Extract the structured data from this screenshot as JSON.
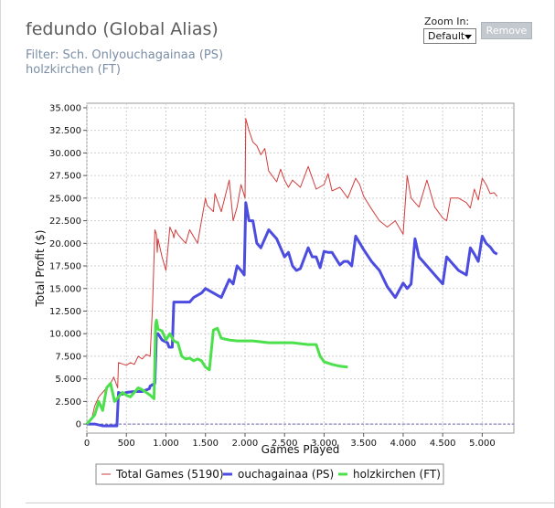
{
  "header": {
    "title": "fedundo (Global Alias)",
    "filter_line1": "Filter: Sch. Onlyouchagainaa (PS)",
    "filter_line2": "holzkirchen (FT)"
  },
  "zoom": {
    "label": "Zoom In:",
    "selected": "Default"
  },
  "remove_label": "Remove",
  "colors": {
    "total": "#d23c3c",
    "ouchagainaa": "#4c4ce0",
    "holzkirchen": "#4ce04c",
    "grid": "#cfcfcf",
    "zero_line": "#6b6bb0"
  },
  "chart_data": {
    "type": "line",
    "xlabel": "Games Played",
    "ylabel": "Total Profit ($)",
    "xlim": [
      0,
      5400
    ],
    "ylim": [
      -1000,
      35500
    ],
    "xticks": [
      0,
      500,
      1000,
      1500,
      2000,
      2500,
      3000,
      3500,
      4000,
      4500,
      5000
    ],
    "xtick_labels": [
      "0",
      "500",
      "1.000",
      "1.500",
      "2.000",
      "2.500",
      "3.000",
      "3.500",
      "4.000",
      "4.500",
      "5.000"
    ],
    "yticks": [
      0,
      2500,
      5000,
      7500,
      10000,
      12500,
      15000,
      17500,
      20000,
      22500,
      25000,
      27500,
      30000,
      32500,
      35000
    ],
    "ytick_labels": [
      "0",
      "2.500",
      "5.000",
      "7.500",
      "10.000",
      "12.500",
      "15.000",
      "17.500",
      "20.000",
      "22.500",
      "25.000",
      "27.500",
      "30.000",
      "32.500",
      "35.000"
    ],
    "grid": true,
    "legend_position": "bottom",
    "series": [
      {
        "name": "Total Games (5190)",
        "color": "#d23c3c",
        "x": [
          0,
          60,
          100,
          150,
          200,
          250,
          300,
          340,
          390,
          400,
          500,
          550,
          600,
          650,
          700,
          750,
          800,
          830,
          860,
          880,
          890,
          900,
          950,
          1000,
          1050,
          1090,
          1100,
          1120,
          1150,
          1200,
          1250,
          1300,
          1400,
          1450,
          1500,
          1520,
          1600,
          1620,
          1700,
          1800,
          1850,
          1900,
          1950,
          2000,
          2010,
          2050,
          2100,
          2150,
          2200,
          2250,
          2300,
          2400,
          2450,
          2500,
          2550,
          2600,
          2700,
          2800,
          2900,
          3000,
          3050,
          3100,
          3200,
          3300,
          3400,
          3450,
          3500,
          3600,
          3700,
          3800,
          3900,
          4000,
          4050,
          4100,
          4200,
          4300,
          4400,
          4500,
          4550,
          4600,
          4700,
          4800,
          4850,
          4900,
          4950,
          5000,
          5050,
          5100,
          5150,
          5190
        ],
        "y": [
          0,
          500,
          2000,
          3000,
          3500,
          4000,
          4500,
          5200,
          4000,
          6800,
          6500,
          6800,
          6600,
          7500,
          7200,
          7700,
          7500,
          13000,
          21500,
          21000,
          19000,
          20500,
          18500,
          17000,
          21800,
          21000,
          20600,
          21500,
          21000,
          20500,
          20000,
          21500,
          20000,
          22500,
          25000,
          24200,
          23500,
          25500,
          23500,
          27000,
          22500,
          24000,
          26500,
          25000,
          33800,
          32500,
          31200,
          30800,
          29800,
          30500,
          28000,
          26800,
          28200,
          27000,
          26200,
          27000,
          26200,
          28500,
          26000,
          26500,
          27700,
          25800,
          26200,
          25000,
          27200,
          26500,
          25200,
          23800,
          22500,
          21800,
          22500,
          21000,
          27500,
          25000,
          24000,
          27000,
          24000,
          22800,
          22500,
          25000,
          25000,
          24500,
          23900,
          26000,
          24800,
          27200,
          26500,
          25500,
          25600,
          25200
        ]
      },
      {
        "name": "ouchagainaa (PS)",
        "color": "#4c4ce0",
        "x": [
          0,
          100,
          200,
          380,
          400,
          450,
          500,
          600,
          700,
          790,
          800,
          860,
          880,
          900,
          950,
          1020,
          1040,
          1080,
          1100,
          1200,
          1300,
          1350,
          1450,
          1500,
          1600,
          1700,
          1800,
          1850,
          1900,
          1950,
          1990,
          2010,
          2050,
          2100,
          2150,
          2200,
          2300,
          2400,
          2500,
          2550,
          2600,
          2650,
          2700,
          2800,
          2850,
          2900,
          2950,
          3000,
          3050,
          3100,
          3200,
          3250,
          3300,
          3350,
          3400,
          3500,
          3600,
          3700,
          3800,
          3900,
          4000,
          4050,
          4100,
          4150,
          4200,
          4300,
          4400,
          4500,
          4550,
          4600,
          4700,
          4800,
          4850,
          4900,
          4950,
          5000,
          5050,
          5100,
          5150,
          5190
        ],
        "y": [
          0,
          0,
          -200,
          -200,
          3500,
          3300,
          3500,
          3600,
          3600,
          3900,
          4200,
          4500,
          10000,
          10000,
          9300,
          9000,
          8500,
          8500,
          13500,
          13500,
          13500,
          14000,
          14500,
          15000,
          14500,
          14000,
          16000,
          15500,
          17500,
          17000,
          16500,
          24500,
          22500,
          22500,
          20000,
          19500,
          21500,
          20500,
          18500,
          19000,
          17500,
          17000,
          17200,
          19500,
          18500,
          18500,
          17300,
          19100,
          19000,
          19000,
          17600,
          18000,
          18000,
          17500,
          20800,
          19300,
          18000,
          17000,
          15200,
          14000,
          15600,
          15000,
          15500,
          20500,
          18500,
          17500,
          16500,
          15500,
          18500,
          18000,
          17000,
          16500,
          19500,
          18800,
          18000,
          20800,
          20000,
          19600,
          19000,
          18800
        ]
      },
      {
        "name": "holzkirchen (FT)",
        "color": "#4ce04c",
        "x": [
          0,
          100,
          150,
          200,
          250,
          300,
          350,
          400,
          450,
          500,
          550,
          600,
          650,
          700,
          750,
          800,
          850,
          870,
          880,
          900,
          950,
          1000,
          1050,
          1100,
          1150,
          1200,
          1250,
          1300,
          1350,
          1400,
          1450,
          1500,
          1550,
          1600,
          1650,
          1700,
          1800,
          1900,
          2000,
          2100,
          2200,
          2300,
          2400,
          2500,
          2600,
          2700,
          2800,
          2900,
          2950,
          3000,
          3100,
          3200,
          3300
        ],
        "y": [
          0,
          1000,
          2500,
          1500,
          4000,
          4500,
          2500,
          3000,
          3500,
          3200,
          3000,
          3500,
          4000,
          3800,
          3500,
          3200,
          2800,
          11000,
          11500,
          10500,
          10300,
          9300,
          10000,
          9200,
          9000,
          7500,
          7200,
          7300,
          7000,
          7200,
          7000,
          6300,
          6000,
          10400,
          10600,
          9500,
          9300,
          9200,
          9200,
          9200,
          9100,
          9000,
          9000,
          9000,
          9000,
          8900,
          8800,
          8800,
          7500,
          6900,
          6600,
          6400,
          6300
        ]
      }
    ]
  }
}
